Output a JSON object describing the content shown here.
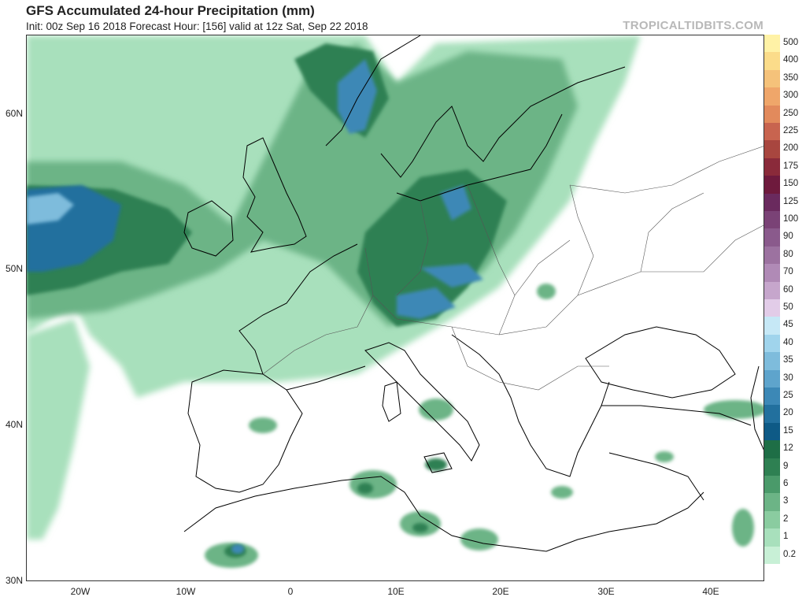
{
  "header": {
    "title": "GFS Accumulated 24-hour Precipitation (mm)",
    "subtitle": "Init: 00z Sep 16 2018   Forecast Hour: [156]   valid at 12z Sat, Sep 22 2018",
    "brand": "TROPICALTIDBITS.COM"
  },
  "axes": {
    "lat_labels": [
      "60N",
      "50N",
      "40N",
      "30N"
    ],
    "lon_labels": [
      "20W",
      "10W",
      "0",
      "10E",
      "20E",
      "30E",
      "40E"
    ]
  },
  "legend": {
    "labels": [
      "500",
      "400",
      "350",
      "300",
      "250",
      "225",
      "200",
      "175",
      "150",
      "125",
      "100",
      "90",
      "80",
      "70",
      "60",
      "50",
      "45",
      "40",
      "35",
      "30",
      "25",
      "20",
      "15",
      "12",
      "9",
      "6",
      "3",
      "2",
      "1",
      "0.2"
    ],
    "colors": [
      "#fff2a6",
      "#fbdc8a",
      "#f5c27a",
      "#efa66a",
      "#e28a5c",
      "#c8644f",
      "#a8463f",
      "#8a2a3a",
      "#6e1a3d",
      "#6a2a5e",
      "#7a4276",
      "#8a5a8c",
      "#9c72a0",
      "#b08ab6",
      "#c6a6cc",
      "#e2cce8",
      "#c6e8f6",
      "#a0d4ec",
      "#7ebcdc",
      "#5ea4cc",
      "#3c88b6",
      "#22709e",
      "#0e5a86",
      "#1e6e46",
      "#2e8052",
      "#4a9a6a",
      "#6cb486",
      "#8acca0",
      "#a8e0bc",
      "#c8f0d6"
    ]
  },
  "colors": {
    "background": "#ffffff",
    "border": "#333333",
    "coastline": "#000000",
    "land": "#ffffff"
  }
}
